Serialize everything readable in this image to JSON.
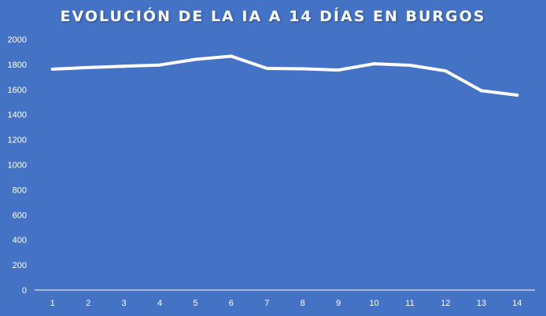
{
  "chart_data": {
    "type": "line",
    "title": "EVOLUCIÓN DE LA IA A 14 DÍAS EN BURGOS",
    "xlabel": "",
    "ylabel": "",
    "categories": [
      "1",
      "2",
      "3",
      "4",
      "5",
      "6",
      "7",
      "8",
      "9",
      "10",
      "11",
      "12",
      "13",
      "14"
    ],
    "series": [
      {
        "values": [
          1762,
          1775,
          1785,
          1795,
          1840,
          1865,
          1768,
          1765,
          1755,
          1805,
          1793,
          1748,
          1590,
          1555
        ]
      }
    ],
    "ylim": [
      0,
      2000
    ],
    "yticks": [
      0,
      200,
      400,
      600,
      800,
      1000,
      1200,
      1400,
      1600,
      1800,
      2000
    ],
    "grid": false,
    "drop_lines": true,
    "legend": "none",
    "colors": {
      "background": "#4472c4",
      "line": "#ffffff",
      "text": "#ffffff",
      "axis": "#ffffff"
    }
  }
}
